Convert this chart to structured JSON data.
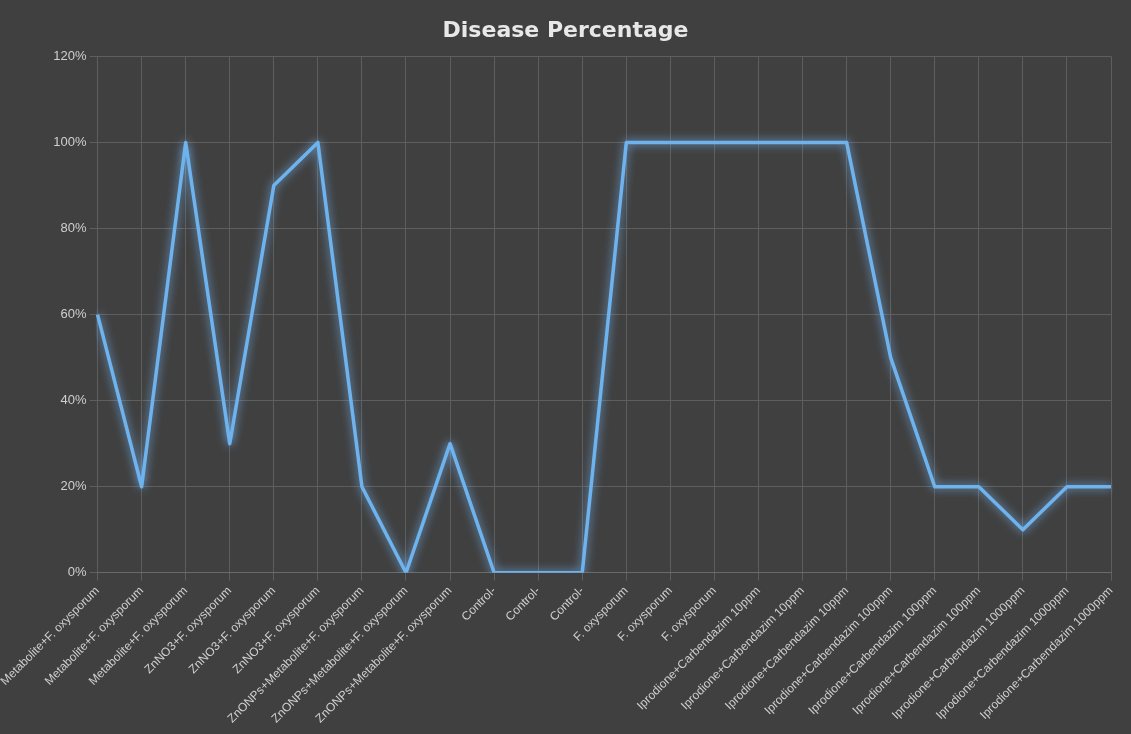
{
  "chart_data": {
    "type": "line",
    "title": "Disease Percentage",
    "categories": [
      "Metabolite+F. oxysporum",
      "Metabolite+F. oxysporum",
      "Metabolite+F. oxysporum",
      "ZnNO3+F. oxysporum",
      "ZnNO3+F. oxysporum",
      "ZnNO3+F. oxysporum",
      "ZnONPs+Metabolite+F. oxysporum",
      "ZnONPs+Metabolite+F. oxysporum",
      "ZnONPs+Metabolite+F. oxysporum",
      "Control-",
      "Control-",
      "Control-",
      "F. oxysporum",
      "F. oxysporum",
      "F. oxysporum",
      "Iprodione+Carbendazim 10ppm",
      "Iprodione+Carbendazim 10ppm",
      "Iprodione+Carbendazim 10ppm",
      "Iprodione+Carbendazim 100ppm",
      "Iprodione+Carbendazim 100ppm",
      "Iprodione+Carbendazim 100ppm",
      "Iprodione+Carbendazim 1000ppm",
      "Iprodione+Carbendazim 1000ppm",
      "Iprodione+Carbendazim 1000ppm"
    ],
    "values": [
      60,
      20,
      100,
      30,
      90,
      100,
      20,
      0,
      30,
      0,
      0,
      0,
      100,
      100,
      100,
      100,
      100,
      100,
      50,
      20,
      20,
      10,
      20,
      20
    ],
    "color": "#6fb3ee",
    "ylim": [
      0,
      120
    ],
    "yticks": [
      {
        "value": 0,
        "label": "0%"
      },
      {
        "value": 20,
        "label": "20%"
      },
      {
        "value": 40,
        "label": "40%"
      },
      {
        "value": 60,
        "label": "60%"
      },
      {
        "value": 80,
        "label": "80%"
      },
      {
        "value": 100,
        "label": "100%"
      },
      {
        "value": 120,
        "label": "120%"
      }
    ],
    "grid": true,
    "marker": "none",
    "line_style": "solid"
  }
}
